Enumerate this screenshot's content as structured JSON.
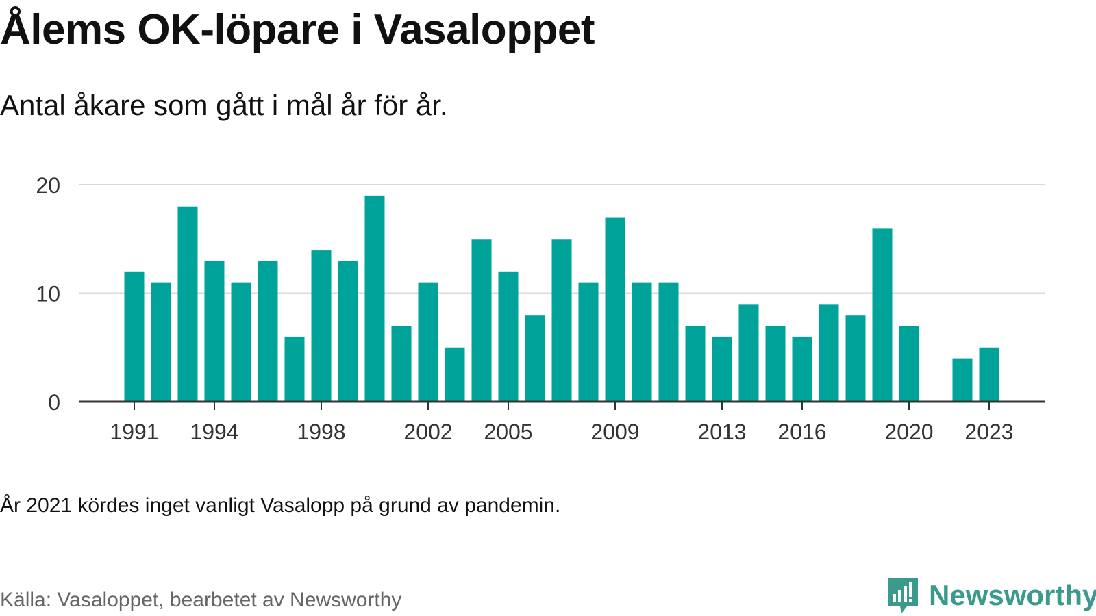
{
  "title": "Ålems OK-löpare i Vasaloppet",
  "subtitle": "Antal åkare som gått i mål år för år.",
  "note": "År 2021 kördes inget vanligt Vasalopp på grund av pandemin.",
  "source": "Källa: Vasaloppet, bearbetet av Newsworthy",
  "brand": {
    "name": "Newsworthy",
    "icon": "newsworthy-logo-icon"
  },
  "colors": {
    "bar": "#00a39a",
    "grid": "#d9d9d9",
    "axis": "#333333",
    "brand": "#3a9a8c"
  },
  "chart_data": {
    "type": "bar",
    "title": "Ålems OK-löpare i Vasaloppet",
    "subtitle": "Antal åkare som gått i mål år för år.",
    "xlabel": "",
    "ylabel": "",
    "ylim": [
      0,
      20
    ],
    "yticks": [
      0,
      10,
      20
    ],
    "xticks": [
      1991,
      1994,
      1998,
      2002,
      2005,
      2009,
      2013,
      2016,
      2020,
      2023
    ],
    "grid": true,
    "legend": "none",
    "categories": [
      1991,
      1992,
      1993,
      1994,
      1995,
      1996,
      1997,
      1998,
      1999,
      2000,
      2001,
      2002,
      2003,
      2004,
      2005,
      2006,
      2007,
      2008,
      2009,
      2010,
      2011,
      2012,
      2013,
      2014,
      2015,
      2016,
      2017,
      2018,
      2019,
      2020,
      2021,
      2022,
      2023
    ],
    "values": [
      12,
      11,
      18,
      13,
      11,
      13,
      6,
      14,
      13,
      19,
      7,
      11,
      5,
      15,
      12,
      8,
      15,
      11,
      17,
      11,
      11,
      7,
      6,
      9,
      7,
      6,
      9,
      8,
      16,
      7,
      null,
      4,
      5
    ]
  }
}
